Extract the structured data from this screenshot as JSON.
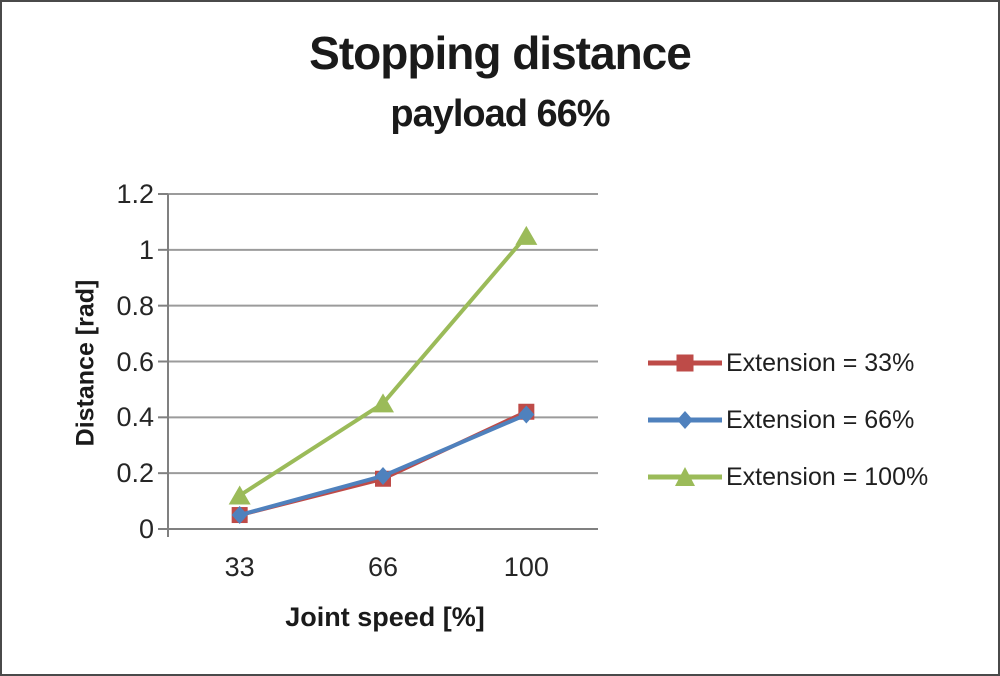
{
  "title": "Stopping distance",
  "subtitle": "payload 66%",
  "chart_data": {
    "type": "line",
    "categories": [
      33,
      66,
      100
    ],
    "x_tick_labels": [
      "33",
      "66",
      "100"
    ],
    "series": [
      {
        "name": "Extension = 33%",
        "marker": "square",
        "color": "#BE4B48",
        "values": [
          0.05,
          0.18,
          0.42
        ]
      },
      {
        "name": "Extension = 66%",
        "marker": "diamond",
        "color": "#4F81BD",
        "values": [
          0.05,
          0.19,
          0.41
        ]
      },
      {
        "name": "Extension = 100%",
        "marker": "triangle",
        "color": "#9BBB59",
        "values": [
          0.12,
          0.45,
          1.05
        ]
      }
    ],
    "xlabel": "Joint speed [%]",
    "ylabel": "Distance [rad]",
    "ylim": [
      0,
      1.2
    ],
    "ytick_step": 0.2,
    "yticks": [
      0,
      0.2,
      0.4,
      0.6,
      0.8,
      1,
      1.2
    ],
    "ytick_labels": [
      "0",
      "0.2",
      "0.4",
      "0.6",
      "0.8",
      "1",
      "1.2"
    ],
    "grid": true,
    "grid_color": "#9b9b9b",
    "axis_color": "#808080",
    "legend_position": "right"
  }
}
